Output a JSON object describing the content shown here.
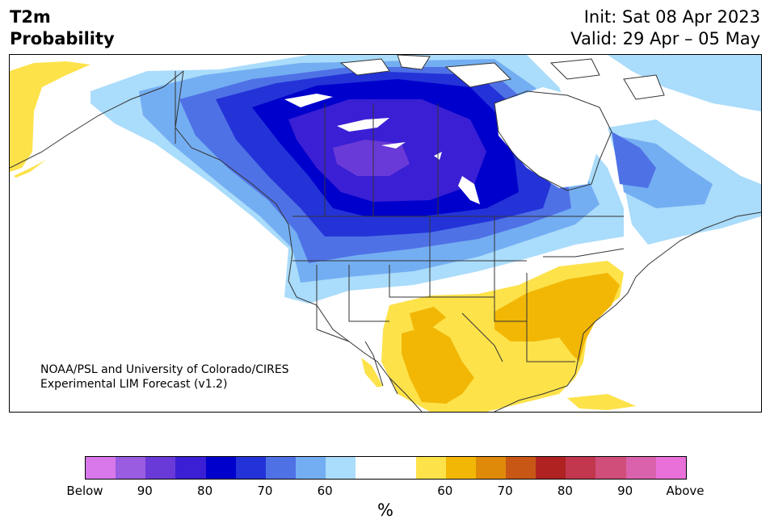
{
  "title": {
    "variable": "T2m",
    "product": "Probability",
    "init": "Init: Sat 08 Apr 2023",
    "valid": "Valid: 29 Apr – 05 May"
  },
  "credit": {
    "line1": "NOAA/PSL and University of Colorado/CIRES",
    "line2": "Experimental LIM Forecast (v1.2)"
  },
  "colorbar": {
    "units": "%",
    "colors": [
      "#d878ea",
      "#9a5ce0",
      "#6a3ad8",
      "#3a1fd4",
      "#0000cc",
      "#2333d8",
      "#4f71e6",
      "#74aef2",
      "#aadcfb",
      "#ffffff",
      "#ffffff",
      "#fde24a",
      "#f2b705",
      "#e08a0a",
      "#c85716",
      "#b02222",
      "#c2364e",
      "#d04e7a",
      "#da62ac",
      "#e870d8"
    ],
    "labels": [
      "Below",
      "90",
      "80",
      "70",
      "60",
      "60",
      "70",
      "80",
      "90",
      "Above"
    ]
  },
  "map": {
    "region": "North America",
    "categories": [
      "below-normal probability (blues/purples) over central/western Canada",
      "above-normal probability (yellows/oranges) over southern and southeastern US and Mexico"
    ]
  }
}
